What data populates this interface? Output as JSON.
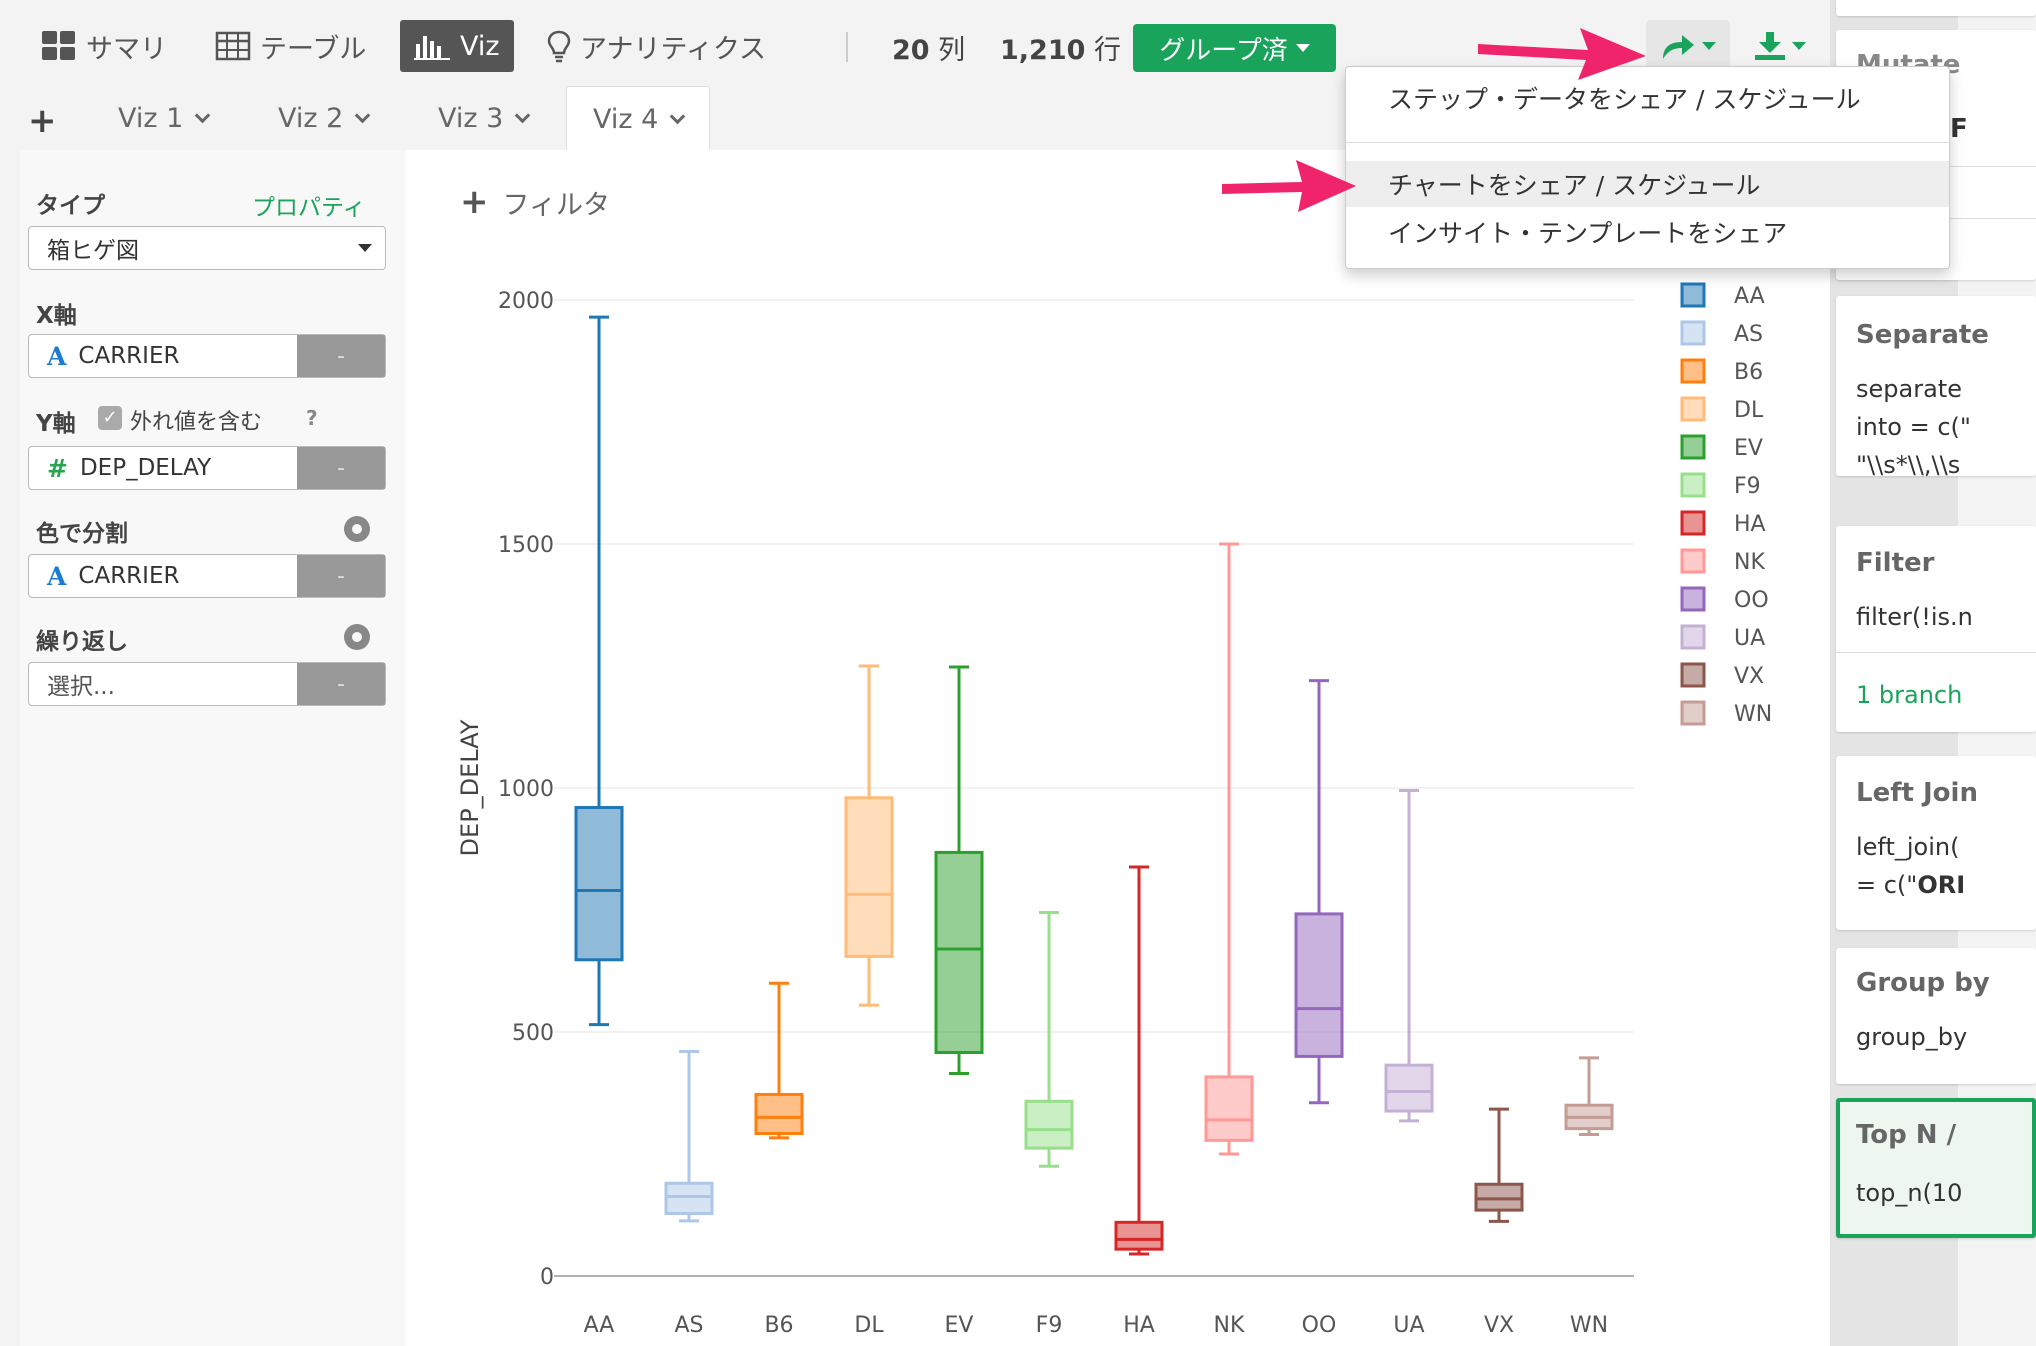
{
  "topnav": {
    "summary": "サマリ",
    "table": "テーブル",
    "viz": "Viz",
    "analytics": "アナリティクス",
    "columns_count": "20",
    "columns_unit": "列",
    "rows_count": "1,210",
    "rows_unit": "行",
    "grouped_label": "グループ済"
  },
  "icons": {
    "summary": "grid-icon",
    "table": "table-icon",
    "viz": "bar-chart-icon",
    "analytics": "lightbulb-icon",
    "share": "share-arrow-icon",
    "download": "download-icon"
  },
  "tabs": [
    "Viz 1",
    "Viz 2",
    "Viz 3",
    "Viz 4"
  ],
  "active_tab": "Viz 4",
  "left": {
    "type_label": "タイプ",
    "properties_link": "プロパティ",
    "type_value": "箱ヒゲ図",
    "x_label": "X軸",
    "x_value": "CARRIER",
    "y_label": "Y軸",
    "include_outliers": "外れ値を含む",
    "help": "?",
    "y_value": "DEP_DELAY",
    "color_label": "色で分割",
    "color_value": "CARRIER",
    "repeat_label": "繰り返し",
    "repeat_value": "選択...",
    "remove": "-"
  },
  "filter_label": "フィルタ",
  "menu": {
    "item1": "ステップ・データをシェア / スケジュール",
    "item2": "チャートをシェア / スケジュール",
    "item3": "インサイト・テンプレートをシェア"
  },
  "right_panel": {
    "card0_title": "Mutate",
    "card0_extra": "F",
    "card1_title": "Separate",
    "card1_line1": "separate",
    "card1_line2": "into = c(\"",
    "card1_line3": "\"\\\\s*\\\\,\\\\s",
    "card2_title": "Filter",
    "card2_line1": "filter(!is.n",
    "card2_branch": "1 branch",
    "card3_title": "Left Join",
    "card3_line1": "left_join(",
    "card3_line2a": "= c(\"",
    "card3_line2b": "ORI",
    "card4_title": "Group by",
    "card4_line1": "group_by",
    "card5_title": "Top N / ",
    "card5_line1": "top_n(10"
  },
  "chart_data": {
    "type": "box",
    "ylabel": "DEP_DELAY",
    "ylim": [
      0,
      2000
    ],
    "yticks": [
      0,
      500,
      1000,
      1500,
      2000
    ],
    "grid": true,
    "legend_position": "right",
    "series": [
      {
        "name": "AA",
        "color": "#1f77b4",
        "min": 515,
        "q1": 648,
        "median": 790,
        "q3": 960,
        "max": 1965
      },
      {
        "name": "AS",
        "color": "#aec7e8",
        "min": 113,
        "q1": 128,
        "median": 163,
        "q3": 190,
        "max": 460
      },
      {
        "name": "B6",
        "color": "#ff7f0e",
        "min": 283,
        "q1": 292,
        "median": 325,
        "q3": 372,
        "max": 600
      },
      {
        "name": "DL",
        "color": "#ffbb78",
        "min": 555,
        "q1": 655,
        "median": 782,
        "q3": 980,
        "max": 1250
      },
      {
        "name": "EV",
        "color": "#2ca02c",
        "min": 415,
        "q1": 458,
        "median": 670,
        "q3": 868,
        "max": 1248
      },
      {
        "name": "F9",
        "color": "#98df8a",
        "min": 225,
        "q1": 262,
        "median": 300,
        "q3": 358,
        "max": 745
      },
      {
        "name": "HA",
        "color": "#d62728",
        "min": 45,
        "q1": 55,
        "median": 75,
        "q3": 110,
        "max": 838
      },
      {
        "name": "NK",
        "color": "#ff9896",
        "min": 250,
        "q1": 278,
        "median": 320,
        "q3": 408,
        "max": 1500
      },
      {
        "name": "OO",
        "color": "#9467bd",
        "min": 355,
        "q1": 450,
        "median": 548,
        "q3": 742,
        "max": 1220
      },
      {
        "name": "UA",
        "color": "#c5b0d5",
        "min": 318,
        "q1": 338,
        "median": 378,
        "q3": 432,
        "max": 995
      },
      {
        "name": "VX",
        "color": "#8c564b",
        "min": 112,
        "q1": 135,
        "median": 158,
        "q3": 188,
        "max": 342
      },
      {
        "name": "WN",
        "color": "#c49c94",
        "min": 290,
        "q1": 302,
        "median": 325,
        "q3": 350,
        "max": 447
      }
    ]
  }
}
